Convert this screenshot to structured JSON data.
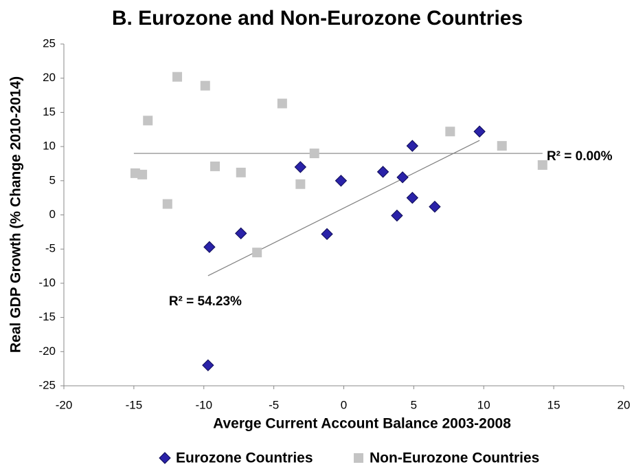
{
  "chart_data": {
    "type": "scatter",
    "title": "B. Eurozone and Non-Eurozone Countries",
    "x_label": "Averge Current Account Balance 2003-2008",
    "y_label": "Real GDP Growth (% Change 2010-2014)",
    "xlim": [
      -20,
      20
    ],
    "xticks": [
      -20,
      -15,
      -10,
      -5,
      0,
      5,
      10,
      15,
      20
    ],
    "ylim": [
      -25,
      25
    ],
    "yticks": [
      -25,
      -20,
      -15,
      -10,
      -5,
      0,
      5,
      10,
      15,
      20,
      25
    ],
    "legend": "bottom",
    "series": [
      {
        "name": "Eurozone Countries",
        "color": "#2a22a8",
        "marker": "diamond",
        "x": [
          -9.6,
          -7.35,
          -3.1,
          -1.2,
          -0.2,
          2.8,
          4.2,
          3.8,
          4.9,
          4.9,
          6.5,
          9.7,
          -9.7
        ],
        "values": [
          -4.7,
          -2.7,
          7.0,
          -2.8,
          5.0,
          6.3,
          5.5,
          -0.1,
          10.1,
          2.5,
          1.2,
          12.2,
          -22.0
        ]
      },
      {
        "name": "Non-Eurozone Countries",
        "color": "#c4c4c4",
        "marker": "square",
        "x": [
          -14.9,
          -14.4,
          -14.0,
          -12.6,
          -11.9,
          -9.9,
          -9.2,
          -7.35,
          -6.2,
          -4.4,
          -3.1,
          -2.1,
          7.6,
          11.3,
          14.2
        ],
        "values": [
          6.1,
          5.9,
          13.8,
          1.6,
          20.2,
          18.9,
          7.1,
          6.2,
          -5.5,
          16.3,
          4.5,
          9.0,
          12.2,
          10.1,
          7.3
        ]
      }
    ],
    "trendlines": [
      {
        "x": [
          -9.7,
          9.7
        ],
        "y": [
          -8.9,
          10.9
        ],
        "label": "R² = 54.23%",
        "label_x": -12.5,
        "label_y": -12.7
      },
      {
        "x": [
          -15,
          14.2
        ],
        "y": [
          9.0,
          9.0
        ],
        "label": "R² = 0.00%",
        "label_x": 14.5,
        "label_y": 8.5
      }
    ]
  }
}
